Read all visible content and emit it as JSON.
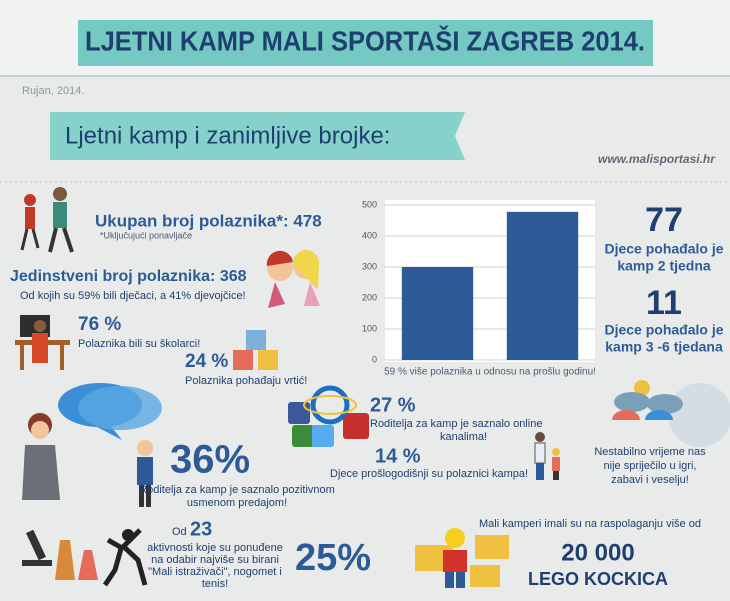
{
  "header": {
    "title": "LJETNI KAMP MALI SPORTAŠI  ZAGREB 2014.",
    "date": "Rujan, 2014.",
    "banner": "Ljetni kamp i zanimljive brojke:",
    "website": "www.malisportasi.hr"
  },
  "participants": {
    "total": "Ukupan broj polaznika*: 478",
    "total_note": "*Uključujući ponavljače",
    "unique": "Jedinstveni broj polaznika: 368",
    "unique_note": "Od kojih su 59% bili dječaci, a 41% djevojčice!"
  },
  "school": {
    "value": "76 %",
    "text": "Polaznika bili su školarci!"
  },
  "kindergarten": {
    "value": "24 %",
    "text": "Polaznika pohađaju vrtić!"
  },
  "chart": {
    "type": "bar",
    "values": [
      300,
      478
    ],
    "color": "#2c5b97",
    "ylim": [
      0,
      500
    ],
    "yticks": [
      0,
      100,
      200,
      300,
      400,
      500
    ],
    "grid": true,
    "caption": "59 % više polaznika u odnosu na prošlu godinu!"
  },
  "two_weeks": {
    "value": "77",
    "text": [
      "Djece pohađalo je",
      "kamp 2 tjedna"
    ]
  },
  "long_stay": {
    "value": "11",
    "text": [
      "Djece pohađalo je",
      "kamp 3 -6 tjedana"
    ]
  },
  "word_of_mouth": {
    "value": "36%",
    "text": [
      "Roditelja za kamp je saznalo pozitivnom",
      "usmenom predajom!"
    ]
  },
  "online": {
    "value": "27 %",
    "text": [
      "Roditelja za kamp je saznalo online",
      "kanalima!"
    ]
  },
  "returning": {
    "value": "14 %",
    "text": "Djece prošlogodišnji su polaznici kampa!"
  },
  "weather": {
    "text": [
      "Nestabilno vrijeme nas",
      "nije spriječilo u igri,",
      "zabavi i veselju!"
    ]
  },
  "activities": {
    "prefix": "Od",
    "value": "23",
    "text": [
      "aktivnosti koje su ponuđene",
      "na odabir najviše su birani",
      "\"Mali istraživači\", nogomet i",
      "tenis!"
    ],
    "share": "25%"
  },
  "lego": {
    "text": "Mali kamperi imali su na raspolaganju više od",
    "value": "20 000",
    "label": "LEGO KOCKICA"
  }
}
